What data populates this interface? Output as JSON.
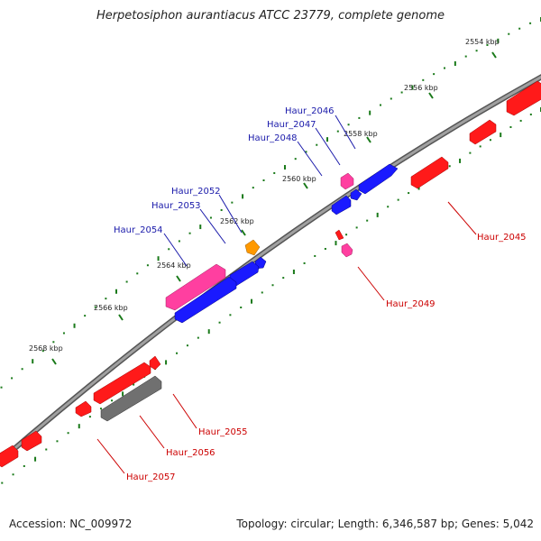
{
  "title": "Herpetosiphon aurantiacus ATCC 23779, complete genome",
  "footer": {
    "accession": "Accession: NC_009972",
    "summary": "Topology: circular; Length: 6,346,587 bp; Genes: 5,042"
  },
  "colors": {
    "backbone": "#808080",
    "tick_major": "#1a7a1a",
    "forward_gene": "#1a1aff",
    "reverse_gene": "#ff1a1a",
    "pseudo_gene_pink": "#ff3fa0",
    "rna_gene_orange": "#ff9900",
    "gray_gene": "#707070",
    "forward_label": "#1a1aaa",
    "reverse_label": "#cc0000"
  },
  "ticks": [
    "2554 kbp",
    "2556 kbp",
    "2558 kbp",
    "2560 kbp",
    "2562 kbp",
    "2564 kbp",
    "2566 kbp",
    "2568 kbp"
  ],
  "forward_labels": [
    "Haur_2046",
    "Haur_2047",
    "Haur_2048",
    "Haur_2052",
    "Haur_2053",
    "Haur_2054"
  ],
  "reverse_labels": [
    "Haur_2045",
    "Haur_2049",
    "Haur_2055",
    "Haur_2056",
    "Haur_2057"
  ]
}
